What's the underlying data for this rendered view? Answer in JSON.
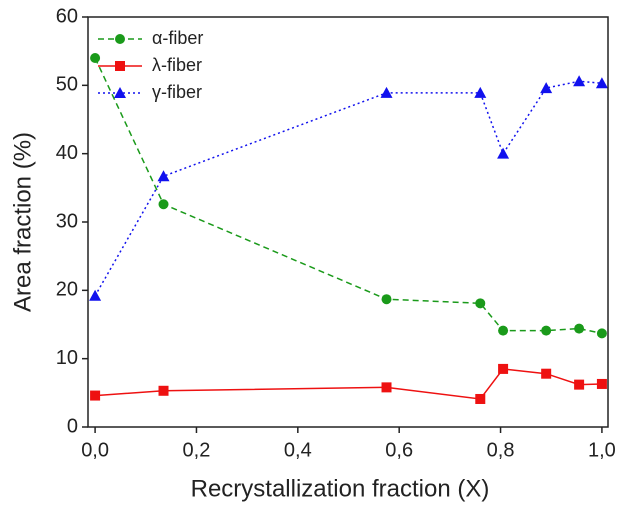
{
  "chart_data": {
    "type": "line",
    "xlabel": "Recrystallization fraction (X)",
    "ylabel": "Area fraction (%)",
    "x": [
      0,
      0.135,
      0.575,
      0.76,
      0.805,
      0.89,
      0.955,
      1.0
    ],
    "series": [
      {
        "name": "α-fiber",
        "color": "#1a9a1a",
        "line_style": "dashed",
        "marker": "circle",
        "values": [
          54,
          32.6,
          18.7,
          18.1,
          14.1,
          14.1,
          14.4,
          13.7
        ]
      },
      {
        "name": "λ-fiber",
        "color": "#ee1111",
        "line_style": "solid",
        "marker": "square",
        "values": [
          4.6,
          5.3,
          5.8,
          4.1,
          8.5,
          7.8,
          6.2,
          6.3
        ]
      },
      {
        "name": "γ-fiber",
        "color": "#1111ee",
        "line_style": "dotted",
        "marker": "triangle",
        "values": [
          19.2,
          36.7,
          48.9,
          48.9,
          40.0,
          49.6,
          50.6,
          50.3
        ]
      }
    ],
    "xlim": [
      -0.014,
      1.012
    ],
    "ylim": [
      0,
      60
    ],
    "xticks": [
      {
        "value": 0,
        "label": "0,0"
      },
      {
        "value": 0.2,
        "label": "0,2"
      },
      {
        "value": 0.4,
        "label": "0,4"
      },
      {
        "value": 0.6,
        "label": "0,6"
      },
      {
        "value": 0.8,
        "label": "0,8"
      },
      {
        "value": 1.0,
        "label": "1,0"
      }
    ],
    "yticks": [
      0,
      10,
      20,
      30,
      40,
      50,
      60
    ],
    "legend": "upper left",
    "grid": false
  }
}
